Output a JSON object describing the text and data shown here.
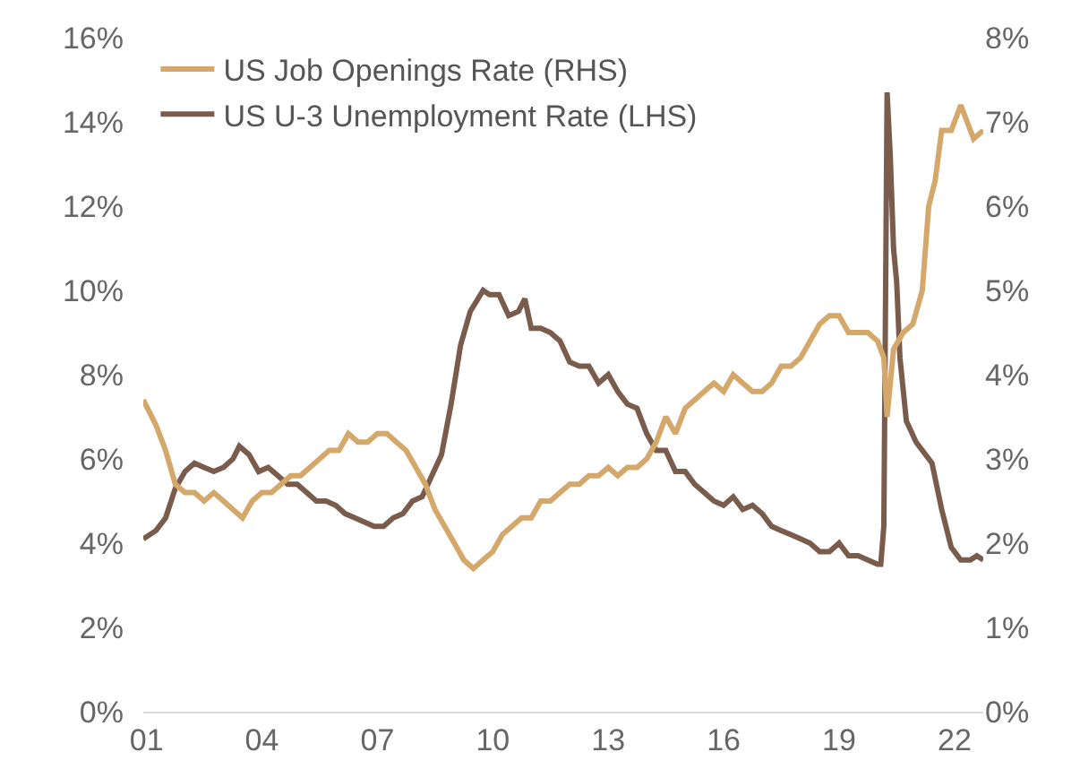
{
  "chart_data": {
    "type": "line",
    "series": [
      {
        "name": "US Job Openings Rate (RHS)",
        "color": "#d4a76a",
        "axis": "y2",
        "x": [
          "2000-12",
          "2001-04",
          "2001-07",
          "2001-10",
          "2002-01",
          "2002-04",
          "2002-07",
          "2002-10",
          "2003-01",
          "2003-04",
          "2003-07",
          "2003-10",
          "2004-01",
          "2004-04",
          "2004-07",
          "2004-10",
          "2005-01",
          "2005-04",
          "2005-07",
          "2005-10",
          "2006-01",
          "2006-04",
          "2006-07",
          "2006-10",
          "2007-01",
          "2007-04",
          "2007-07",
          "2007-10",
          "2008-01",
          "2008-04",
          "2008-07",
          "2008-10",
          "2009-01",
          "2009-04",
          "2009-07",
          "2009-10",
          "2010-01",
          "2010-04",
          "2010-07",
          "2010-10",
          "2011-01",
          "2011-04",
          "2011-07",
          "2011-10",
          "2012-01",
          "2012-04",
          "2012-07",
          "2012-10",
          "2013-01",
          "2013-04",
          "2013-07",
          "2013-10",
          "2014-01",
          "2014-04",
          "2014-07",
          "2014-10",
          "2015-01",
          "2015-04",
          "2015-07",
          "2015-10",
          "2016-01",
          "2016-04",
          "2016-07",
          "2016-10",
          "2017-01",
          "2017-04",
          "2017-07",
          "2017-10",
          "2018-01",
          "2018-04",
          "2018-07",
          "2018-10",
          "2019-01",
          "2019-04",
          "2019-07",
          "2019-10",
          "2020-01",
          "2020-03",
          "2020-04",
          "2020-06",
          "2020-09",
          "2020-12",
          "2021-03",
          "2021-05",
          "2021-07",
          "2021-09",
          "2021-12",
          "2022-01",
          "2022-03",
          "2022-05",
          "2022-07",
          "2022-10"
        ],
        "values": [
          3.7,
          3.4,
          3.1,
          2.7,
          2.6,
          2.6,
          2.5,
          2.6,
          2.5,
          2.4,
          2.3,
          2.5,
          2.6,
          2.6,
          2.7,
          2.8,
          2.8,
          2.9,
          3.0,
          3.1,
          3.1,
          3.3,
          3.2,
          3.2,
          3.3,
          3.3,
          3.2,
          3.1,
          2.9,
          2.7,
          2.4,
          2.2,
          2.0,
          1.8,
          1.7,
          1.8,
          1.9,
          2.1,
          2.2,
          2.3,
          2.3,
          2.5,
          2.5,
          2.6,
          2.7,
          2.7,
          2.8,
          2.8,
          2.9,
          2.8,
          2.9,
          2.9,
          3.0,
          3.2,
          3.5,
          3.3,
          3.6,
          3.7,
          3.8,
          3.9,
          3.8,
          4.0,
          3.9,
          3.8,
          3.8,
          3.9,
          4.1,
          4.1,
          4.2,
          4.4,
          4.6,
          4.7,
          4.7,
          4.5,
          4.5,
          4.5,
          4.4,
          4.2,
          3.5,
          4.3,
          4.5,
          4.6,
          5.0,
          6.0,
          6.3,
          6.9,
          6.9,
          7.0,
          7.2,
          7.0,
          6.8,
          6.9
        ]
      },
      {
        "name": "US U-3 Unemployment Rate (LHS)",
        "color": "#7a5c4d",
        "x": [
          "2000-12",
          "2001-04",
          "2001-07",
          "2001-10",
          "2002-01",
          "2002-04",
          "2002-07",
          "2002-10",
          "2003-01",
          "2003-04",
          "2003-06",
          "2003-09",
          "2003-12",
          "2004-03",
          "2004-06",
          "2004-09",
          "2004-12",
          "2005-03",
          "2005-06",
          "2005-09",
          "2005-12",
          "2006-03",
          "2006-06",
          "2006-09",
          "2006-12",
          "2007-03",
          "2007-06",
          "2007-09",
          "2007-12",
          "2008-03",
          "2008-06",
          "2008-09",
          "2008-12",
          "2009-03",
          "2009-06",
          "2009-10",
          "2009-12",
          "2010-03",
          "2010-06",
          "2010-09",
          "2010-11",
          "2011-01",
          "2011-04",
          "2011-07",
          "2011-10",
          "2012-01",
          "2012-04",
          "2012-07",
          "2012-10",
          "2013-01",
          "2013-04",
          "2013-07",
          "2013-10",
          "2014-01",
          "2014-04",
          "2014-07",
          "2014-10",
          "2015-01",
          "2015-04",
          "2015-07",
          "2015-10",
          "2016-01",
          "2016-04",
          "2016-07",
          "2016-10",
          "2017-01",
          "2017-04",
          "2017-07",
          "2017-10",
          "2018-01",
          "2018-04",
          "2018-07",
          "2018-10",
          "2019-01",
          "2019-04",
          "2019-07",
          "2019-10",
          "2020-01",
          "2020-02",
          "2020-03",
          "2020-04",
          "2020-05",
          "2020-06",
          "2020-07",
          "2020-08",
          "2020-10",
          "2021-01",
          "2021-04",
          "2021-06",
          "2021-09",
          "2021-12",
          "2022-03",
          "2022-06",
          "2022-08",
          "2022-10"
        ],
        "values": [
          4.1,
          4.3,
          4.6,
          5.3,
          5.7,
          5.9,
          5.8,
          5.7,
          5.8,
          6.0,
          6.3,
          6.1,
          5.7,
          5.8,
          5.6,
          5.4,
          5.4,
          5.2,
          5.0,
          5.0,
          4.9,
          4.7,
          4.6,
          4.5,
          4.4,
          4.4,
          4.6,
          4.7,
          5.0,
          5.1,
          5.6,
          6.1,
          7.3,
          8.7,
          9.5,
          10.0,
          9.9,
          9.9,
          9.4,
          9.5,
          9.8,
          9.1,
          9.1,
          9.0,
          8.8,
          8.3,
          8.2,
          8.2,
          7.8,
          8.0,
          7.6,
          7.3,
          7.2,
          6.6,
          6.2,
          6.2,
          5.7,
          5.7,
          5.4,
          5.2,
          5.0,
          4.9,
          5.1,
          4.8,
          4.9,
          4.7,
          4.4,
          4.3,
          4.2,
          4.1,
          4.0,
          3.8,
          3.8,
          4.0,
          3.7,
          3.7,
          3.6,
          3.5,
          3.5,
          4.4,
          14.7,
          13.2,
          11.0,
          10.2,
          8.4,
          6.9,
          6.4,
          6.1,
          5.9,
          4.8,
          3.9,
          3.6,
          3.6,
          3.7,
          3.6
        ]
      }
    ],
    "xlim": [
      "2000-12",
      "2022-10"
    ],
    "xticks": [
      {
        "value": "2001-01",
        "label": "01"
      },
      {
        "value": "2004-01",
        "label": "04"
      },
      {
        "value": "2007-01",
        "label": "07"
      },
      {
        "value": "2010-01",
        "label": "10"
      },
      {
        "value": "2013-01",
        "label": "13"
      },
      {
        "value": "2016-01",
        "label": "16"
      },
      {
        "value": "2019-01",
        "label": "19"
      },
      {
        "value": "2022-01",
        "label": "22"
      }
    ],
    "ylim": [
      0,
      16
    ],
    "yticks": [
      {
        "value": 0,
        "label": "0%"
      },
      {
        "value": 2,
        "label": "2%"
      },
      {
        "value": 4,
        "label": "4%"
      },
      {
        "value": 6,
        "label": "6%"
      },
      {
        "value": 8,
        "label": "8%"
      },
      {
        "value": 10,
        "label": "10%"
      },
      {
        "value": 12,
        "label": "12%"
      },
      {
        "value": 14,
        "label": "14%"
      },
      {
        "value": 16,
        "label": "16%"
      }
    ],
    "y2lim": [
      0,
      8
    ],
    "y2ticks": [
      {
        "value": 0,
        "label": "0%"
      },
      {
        "value": 1,
        "label": "1%"
      },
      {
        "value": 2,
        "label": "2%"
      },
      {
        "value": 3,
        "label": "3%"
      },
      {
        "value": 4,
        "label": "4%"
      },
      {
        "value": 5,
        "label": "5%"
      },
      {
        "value": 6,
        "label": "6%"
      },
      {
        "value": 7,
        "label": "7%"
      },
      {
        "value": 8,
        "label": "8%"
      }
    ],
    "grid": false,
    "legend": "top left",
    "marker": "none",
    "line_style": "solid"
  }
}
